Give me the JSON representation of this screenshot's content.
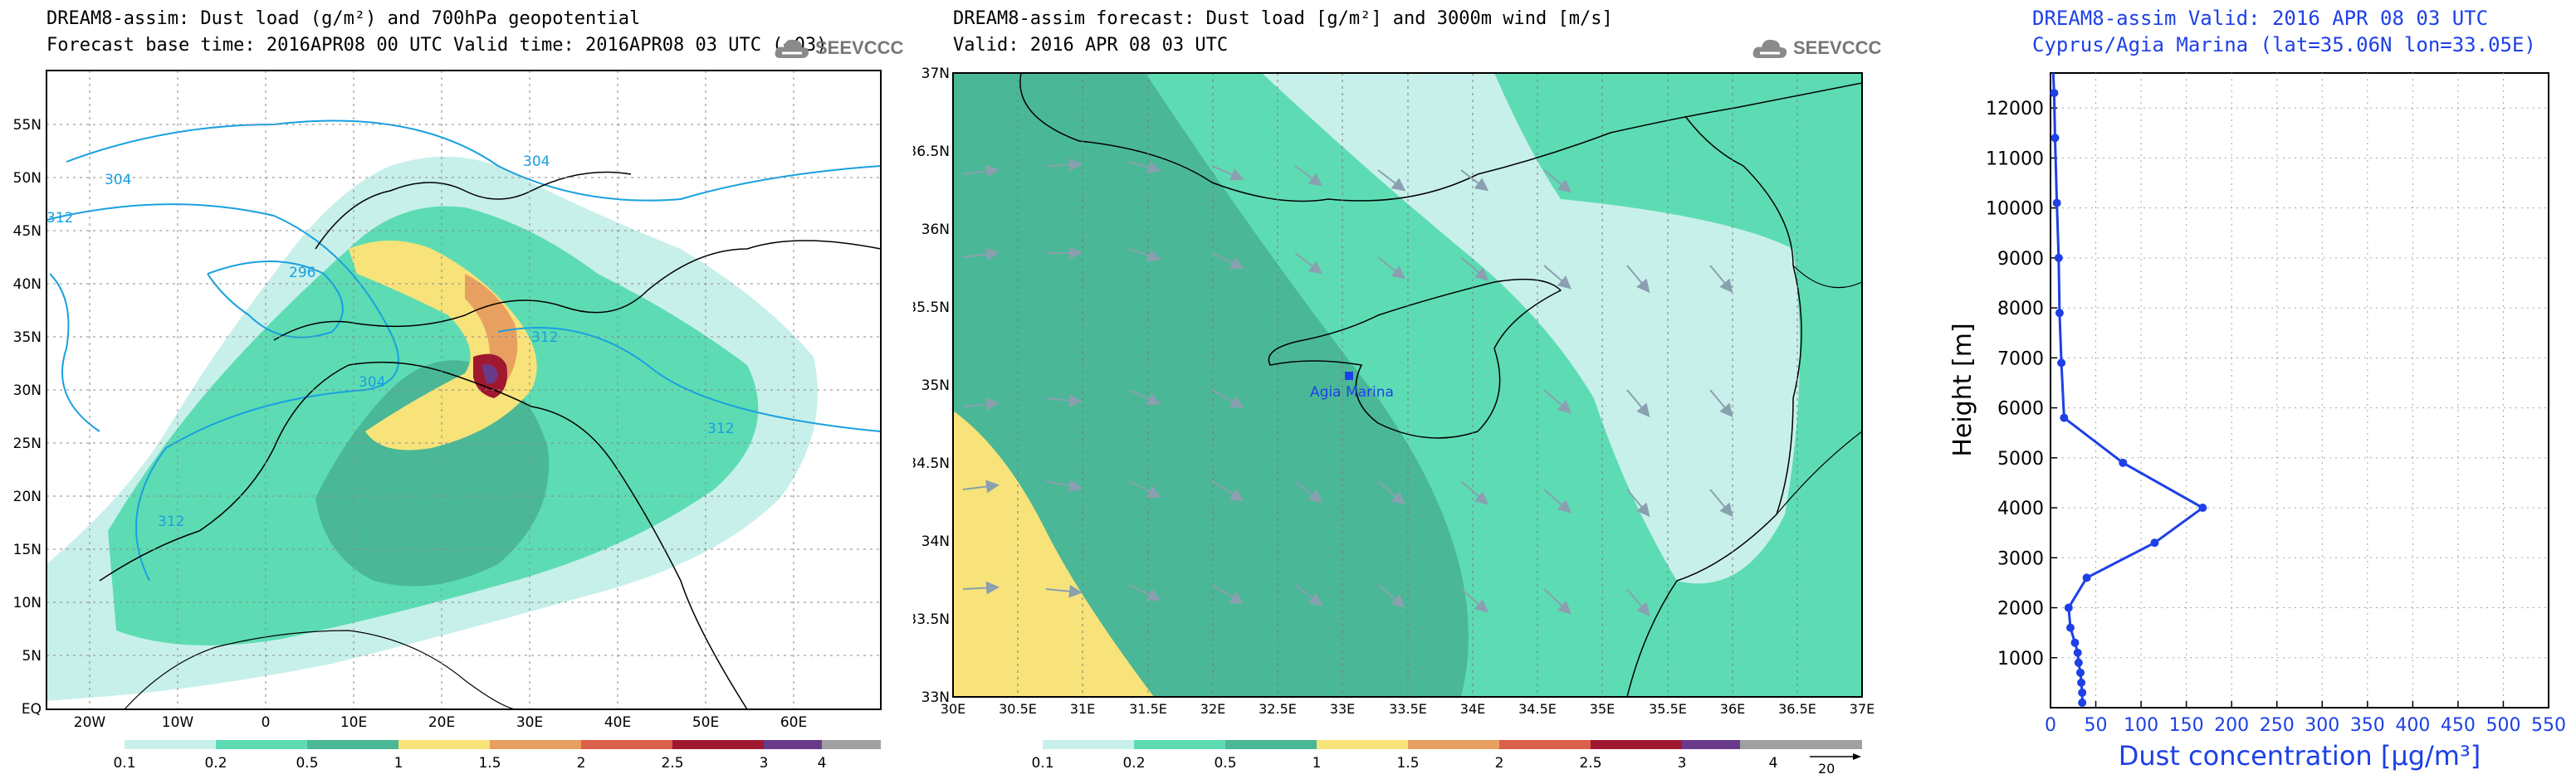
{
  "panel1": {
    "title_line1": "DREAM8-assim: Dust load (g/m²) and 700hPa geopotential",
    "title_line2": "Forecast base time: 2016APR08 00 UTC  Valid time: 2016APR08 03 UTC  (+03)",
    "logo_text": "SEEVCCC",
    "lat_labels": [
      "55N",
      "50N",
      "45N",
      "40N",
      "35N",
      "30N",
      "25N",
      "20N",
      "15N",
      "10N",
      "5N",
      "EQ"
    ],
    "lon_labels": [
      "20W",
      "10W",
      "0",
      "10E",
      "20E",
      "30E",
      "40E",
      "50E",
      "60E"
    ],
    "contour_labels": [
      "304",
      "312",
      "296",
      "304",
      "312",
      "312",
      "304",
      "312"
    ],
    "colorbar_labels": [
      "0.1",
      "0.2",
      "0.5",
      "1",
      "1.5",
      "2",
      "2.5",
      "3",
      "4"
    ],
    "colorbar_colors": [
      "#c8f0ea",
      "#5ddcb4",
      "#4ab896",
      "#f7e37a",
      "#e8a060",
      "#d9604a",
      "#a01830",
      "#6a3a8a",
      "#a0a0a0"
    ]
  },
  "panel2": {
    "title_line1": "DREAM8-assim forecast: Dust load [g/m²] and 3000m wind [m/s]",
    "title_line2": "Valid: 2016 APR 08   03 UTC",
    "logo_text": "SEEVCCC",
    "lat_labels": [
      "37N",
      "36.5N",
      "36N",
      "35.5N",
      "35N",
      "34.5N",
      "34N",
      "33.5N",
      "33N"
    ],
    "lon_labels": [
      "30E",
      "30.5E",
      "31E",
      "31.5E",
      "32E",
      "32.5E",
      "33E",
      "33.5E",
      "34E",
      "34.5E",
      "35E",
      "35.5E",
      "36E",
      "36.5E",
      "37E"
    ],
    "station_label": "Agia Marina",
    "colorbar_labels": [
      "0.1",
      "0.2",
      "0.5",
      "1",
      "1.5",
      "2",
      "2.5",
      "3",
      "4"
    ],
    "vector_ref": "20"
  },
  "panel3": {
    "title_line1": "DREAM8-assim   Valid: 2016 APR 08   03 UTC",
    "title_line2": "Cyprus/Agia Marina (lat=35.06N lon=33.05E)",
    "line_color": "#1e40e6"
  },
  "chart_data": {
    "type": "line",
    "xlabel": "Dust concentration [μg/m³]",
    "ylabel": "Height [m]",
    "xlim": [
      0,
      550
    ],
    "ylim": [
      0,
      12700
    ],
    "x_ticks": [
      0,
      50,
      100,
      150,
      200,
      250,
      300,
      350,
      400,
      450,
      500,
      550
    ],
    "y_ticks": [
      1000,
      2000,
      3000,
      4000,
      5000,
      6000,
      7000,
      8000,
      9000,
      10000,
      11000,
      12000
    ],
    "grid": true,
    "series": [
      {
        "x": [
          35,
          35,
          34,
          33,
          31,
          30,
          27,
          22,
          20,
          40,
          115,
          168,
          80,
          15,
          12,
          10,
          9,
          7,
          5,
          4,
          3
        ],
        "y": [
          100,
          300,
          500,
          700,
          900,
          1100,
          1300,
          1600,
          2000,
          2600,
          3300,
          4000,
          4900,
          5800,
          6900,
          7900,
          9000,
          10100,
          11400,
          12300,
          12700
        ]
      }
    ]
  }
}
